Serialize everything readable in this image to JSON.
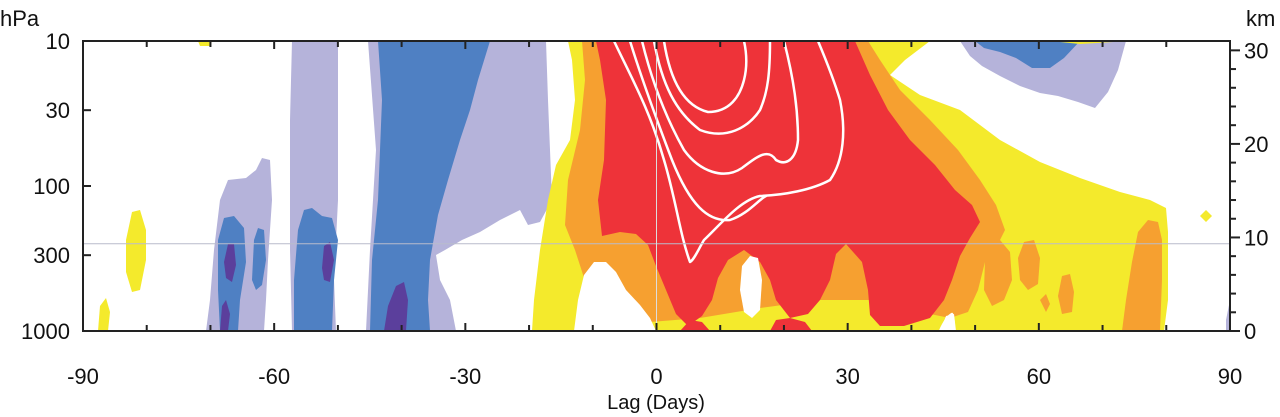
{
  "chart_data": {
    "type": "heatmap",
    "title": "",
    "xlabel": "Lag (Days)",
    "ylabel_left": "hPa",
    "ylabel_right": "km",
    "xlim": [
      -90,
      90
    ],
    "ylim_left_hPa": [
      1000,
      10
    ],
    "ylim_right_km": [
      0,
      31
    ],
    "y_scale": "log",
    "x_ticks": [
      -90,
      -60,
      -30,
      0,
      30,
      60,
      90
    ],
    "x_tick_labels": [
      "-90",
      "-60",
      "-30",
      "0",
      "30",
      "60",
      "90"
    ],
    "y_ticks_left": [
      10,
      30,
      100,
      300,
      1000
    ],
    "y_tick_labels_left": [
      "10",
      "30",
      "100",
      "300",
      "1000"
    ],
    "y_ticks_right_km": [
      0,
      10,
      20,
      30
    ],
    "y_tick_labels_right": [
      "0",
      "10",
      "20",
      "30"
    ],
    "reference_line_hPa": 250,
    "colors": {
      "neg_light": "#b5b3da",
      "neg_mid": "#4f80c3",
      "neg_strong": "#5b3f9c",
      "pos_light": "#f4ea2c",
      "pos_mid": "#f6a030",
      "pos_strong": "#ee3339",
      "contour": "#ffffff",
      "reference_line": "#b9bccc"
    },
    "color_order": [
      "neg_strong",
      "neg_mid",
      "neg_light",
      "white",
      "pos_light",
      "pos_mid",
      "pos_strong"
    ]
  }
}
